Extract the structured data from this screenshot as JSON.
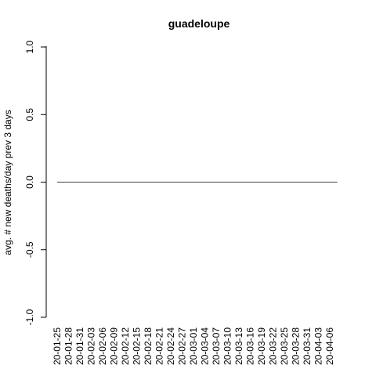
{
  "chart_data": {
    "type": "line",
    "title": "guadeloupe",
    "xlabel": "",
    "ylabel": "avg. # new deaths/day prev  3  days",
    "ylim": [
      -1.0,
      1.0
    ],
    "yticks": [
      "-1.0",
      "-0.5",
      "0.0",
      "0.5",
      "1.0"
    ],
    "x_ticklabels": [
      "20-01-25",
      "20-01-28",
      "20-01-31",
      "20-02-03",
      "20-02-06",
      "20-02-09",
      "20-02-12",
      "20-02-15",
      "20-02-18",
      "20-02-21",
      "20-02-24",
      "20-02-27",
      "20-03-01",
      "20-03-04",
      "20-03-07",
      "20-03-10",
      "20-03-13",
      "20-03-16",
      "20-03-19",
      "20-03-22",
      "20-03-25",
      "20-03-28",
      "20-03-31",
      "20-04-03",
      "20-04-06"
    ],
    "x_start": "2020-01-25",
    "x_end": "2020-04-08",
    "series": [
      {
        "start": "2020-01-25",
        "end": "2020-04-08",
        "value": 0
      }
    ],
    "grid": false,
    "colors": {
      "line": "#000000",
      "axis": "#000000"
    }
  }
}
